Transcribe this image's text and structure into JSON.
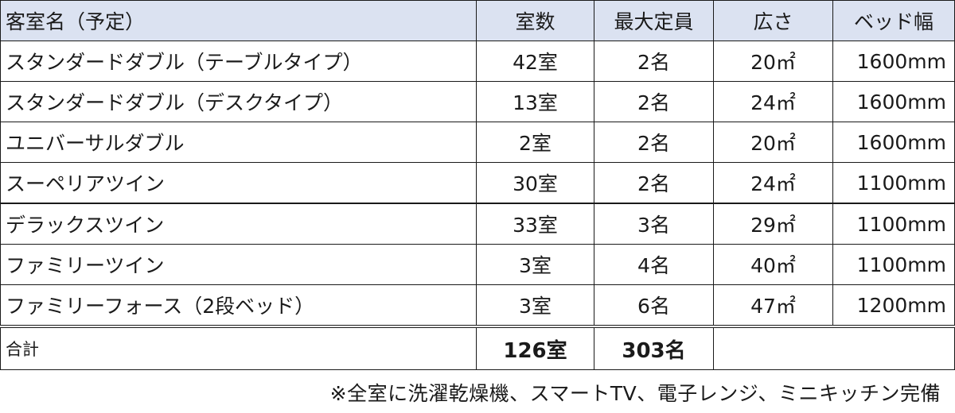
{
  "headers": [
    "客室名（予定）",
    "室数",
    "最大定員",
    "広さ",
    "ベッド幅"
  ],
  "rows": [
    {
      "name": "スタンダードダブル（テーブルタイプ）",
      "rooms": "42室",
      "capacity": "2名",
      "size": "20㎡",
      "bed": "1600mm"
    },
    {
      "name": "スタンダードダブル（デスクタイプ）",
      "rooms": "13室",
      "capacity": "2名",
      "size": "24㎡",
      "bed": "1600mm"
    },
    {
      "name": "ユニバーサルダブル",
      "rooms": "2室",
      "capacity": "2名",
      "size": "20㎡",
      "bed": "1600mm"
    },
    {
      "name": "スーペリアツイン",
      "rooms": "30室",
      "capacity": "2名",
      "size": "24㎡",
      "bed": "1100mm"
    },
    {
      "name": "デラックスツイン",
      "rooms": "33室",
      "capacity": "3名",
      "size": "29㎡",
      "bed": "1100mm"
    },
    {
      "name": "ファミリーツイン",
      "rooms": "3室",
      "capacity": "4名",
      "size": "40㎡",
      "bed": "1100mm"
    },
    {
      "name": "ファミリーフォース（2段ベッド）",
      "rooms": "3室",
      "capacity": "6名",
      "size": "47㎡",
      "bed": "1200mm"
    }
  ],
  "total": {
    "label": "合計",
    "rooms": "126室",
    "capacity": "303名"
  },
  "note": "※全室に洗濯乾燥機、スマートTV、電子レンジ、ミニキッチン完備",
  "colors": {
    "header_bg": "#dbe2f1",
    "border": "#1a1a1a"
  }
}
